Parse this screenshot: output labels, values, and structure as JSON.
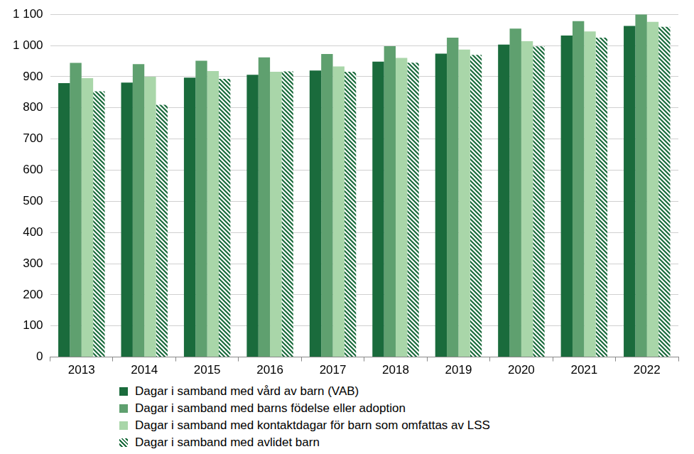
{
  "chart_data": {
    "type": "bar",
    "categories": [
      "2013",
      "2014",
      "2015",
      "2016",
      "2017",
      "2018",
      "2019",
      "2020",
      "2021",
      "2022"
    ],
    "series": [
      {
        "name": "Dagar i samband med vård av  barn (VAB)",
        "color": "#1a6b3c",
        "values": [
          879,
          881,
          897,
          906,
          920,
          948,
          974,
          1003,
          1032,
          1063
        ]
      },
      {
        "name": "Dagar i samband med barns födelse eller adoption",
        "color": "#5fa06f",
        "values": [
          944,
          940,
          951,
          962,
          973,
          998,
          1025,
          1054,
          1078,
          1100
        ]
      },
      {
        "name": "Dagar i samband med kontaktdagar för barn som omfattas av LSS",
        "color": "#a9d6a9",
        "values": [
          895,
          900,
          918,
          916,
          933,
          960,
          987,
          1014,
          1045,
          1076
        ]
      },
      {
        "name": "Dagar i samband med avlidet barn",
        "color": "#1a6b3c",
        "line_style": "hatched",
        "values": [
          853,
          810,
          893,
          917,
          916,
          945,
          970,
          997,
          1025,
          1060
        ]
      }
    ],
    "ylim": [
      0,
      1100
    ],
    "yticks": [
      0,
      100,
      200,
      300,
      400,
      500,
      600,
      700,
      800,
      900,
      {
        "value": 1000,
        "label": "1 000"
      },
      {
        "value": 1100,
        "label": "1 100"
      }
    ],
    "grid": true,
    "legend": "bottom"
  }
}
